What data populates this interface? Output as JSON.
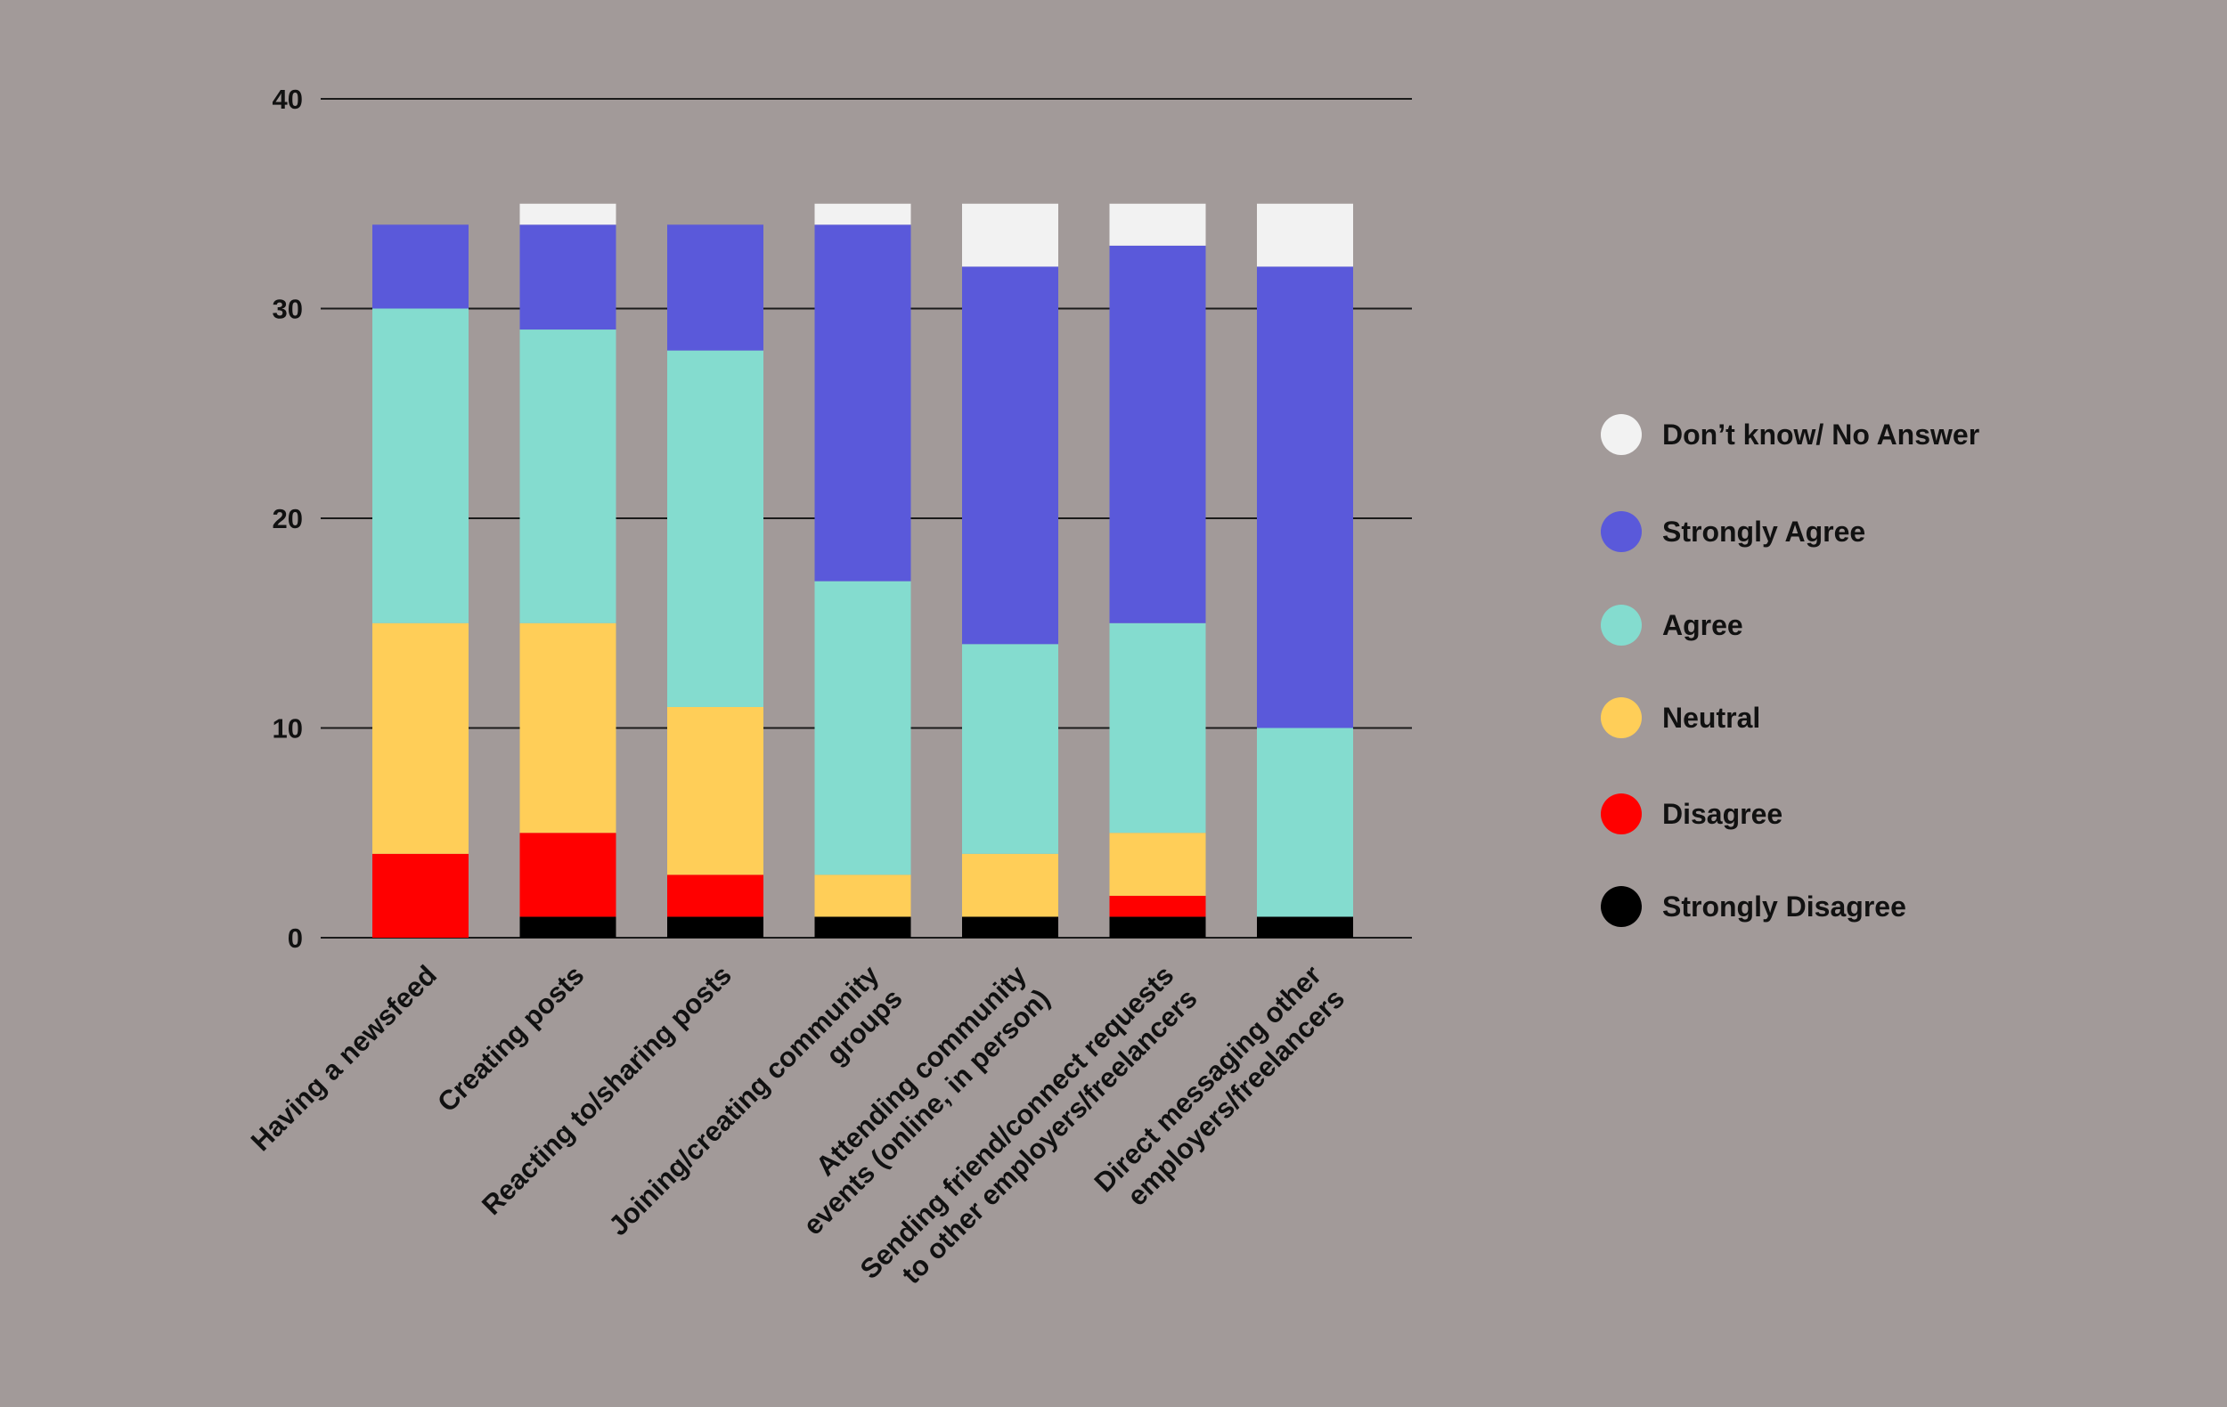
{
  "chart_data": {
    "type": "bar",
    "stacked": true,
    "title": "",
    "xlabel": "",
    "ylabel": "",
    "ylim": [
      0,
      40
    ],
    "yticks": [
      0,
      10,
      20,
      30,
      40
    ],
    "grid": true,
    "legend_position": "right",
    "categories": [
      [
        "Having a newsfeed"
      ],
      [
        "Creating posts"
      ],
      [
        "Reacting to/sharing posts"
      ],
      [
        "Joining/creating community",
        "groups"
      ],
      [
        "Attending community",
        "events (online, in person)"
      ],
      [
        "Sending friend/connect requests",
        "to other employers/freelancers"
      ],
      [
        "Direct messaging other",
        "employers/freelancers"
      ]
    ],
    "series": [
      {
        "name": "Strongly Disagree",
        "color": "#000000",
        "values": [
          0,
          1,
          1,
          1,
          1,
          1,
          1
        ]
      },
      {
        "name": "Disagree",
        "color": "#ff0000",
        "values": [
          4,
          4,
          2,
          0,
          0,
          1,
          0
        ]
      },
      {
        "name": "Neutral",
        "color": "#ffce58",
        "values": [
          11,
          10,
          8,
          2,
          3,
          3,
          0
        ]
      },
      {
        "name": "Agree",
        "color": "#84dccf",
        "values": [
          15,
          14,
          17,
          14,
          10,
          10,
          9
        ]
      },
      {
        "name": "Strongly Agree",
        "color": "#5a59da",
        "values": [
          4,
          5,
          6,
          17,
          18,
          18,
          22
        ]
      },
      {
        "name": "Don’t know/ No Answer",
        "color": "#f2f2f2",
        "values": [
          0,
          1,
          0,
          1,
          3,
          2,
          3
        ]
      }
    ],
    "legend_order": [
      "Don’t know/ No Answer",
      "Strongly Agree",
      "Agree",
      "Neutral",
      "Disagree",
      "Strongly Disagree"
    ]
  }
}
